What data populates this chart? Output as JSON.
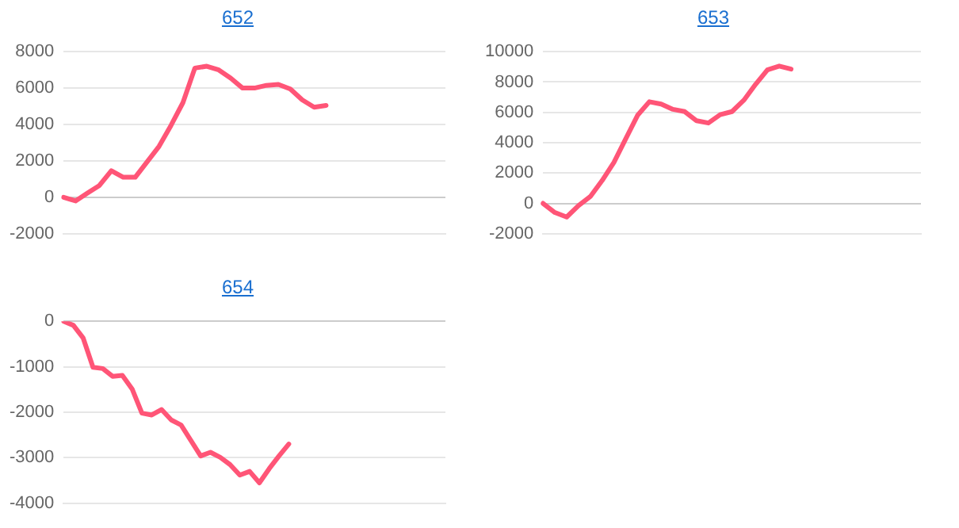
{
  "chart_data": [
    {
      "type": "line",
      "title": "652",
      "categories": [
        null,
        null,
        null,
        null,
        null,
        null,
        null,
        null,
        null,
        null,
        null,
        null,
        null,
        null,
        null,
        null,
        null,
        null,
        null,
        null,
        null,
        null,
        null,
        null,
        null,
        null,
        null,
        null,
        null,
        null,
        null,
        null,
        null
      ],
      "values": [
        0,
        -200,
        230,
        650,
        1460,
        1100,
        1100,
        1950,
        2800,
        3950,
        5200,
        7100,
        7200,
        7000,
        6550,
        6000,
        6000,
        6150,
        6200,
        5950,
        5350,
        4950,
        5050,
        null,
        null,
        null,
        null,
        null,
        null,
        null,
        null,
        null,
        null
      ],
      "color": "#ff5577",
      "ylim": [
        -2000,
        8000
      ],
      "yticks": [
        -2000,
        0,
        2000,
        4000,
        6000,
        8000
      ],
      "grid": "y",
      "tick_labels": "y",
      "marker": "none"
    },
    {
      "type": "line",
      "title": "653",
      "categories": [
        null,
        null,
        null,
        null,
        null,
        null,
        null,
        null,
        null,
        null,
        null,
        null,
        null,
        null,
        null,
        null,
        null,
        null,
        null,
        null,
        null,
        null,
        null,
        null,
        null,
        null,
        null,
        null,
        null,
        null,
        null,
        null,
        null
      ],
      "values": [
        0,
        -600,
        -900,
        -150,
        450,
        1500,
        2700,
        4250,
        5800,
        6700,
        6550,
        6200,
        6050,
        5450,
        5300,
        5850,
        6050,
        6800,
        7850,
        8800,
        9050,
        8850,
        null,
        null,
        null,
        null,
        null,
        null,
        null,
        null,
        null,
        null,
        null
      ],
      "color": "#ff5577",
      "ylim": [
        -2000,
        10000
      ],
      "yticks": [
        -2000,
        0,
        2000,
        4000,
        6000,
        8000,
        10000
      ],
      "grid": "y",
      "tick_labels": "y",
      "marker": "none"
    },
    {
      "type": "line",
      "title": "654",
      "categories": [
        null,
        null,
        null,
        null,
        null,
        null,
        null,
        null,
        null,
        null,
        null,
        null,
        null,
        null,
        null,
        null,
        null,
        null,
        null,
        null,
        null,
        null,
        null,
        null,
        null,
        null,
        null,
        null,
        null,
        null,
        null,
        null,
        null,
        null,
        null,
        null,
        null,
        null,
        null,
        null
      ],
      "values": [
        0,
        -90,
        -370,
        -1010,
        -1040,
        -1210,
        -1190,
        -1490,
        -2020,
        -2060,
        -1940,
        -2170,
        -2280,
        -2620,
        -2960,
        -2880,
        -2990,
        -3150,
        -3380,
        -3300,
        -3550,
        -3240,
        -2960,
        -2700,
        null,
        null,
        null,
        null,
        null,
        null,
        null,
        null,
        null,
        null,
        null,
        null,
        null,
        null,
        null,
        null
      ],
      "color": "#ff5577",
      "ylim": [
        -4000,
        0
      ],
      "yticks": [
        -4000,
        -3000,
        -2000,
        -1000,
        0
      ],
      "grid": "y",
      "tick_labels": "y",
      "marker": "none"
    }
  ]
}
